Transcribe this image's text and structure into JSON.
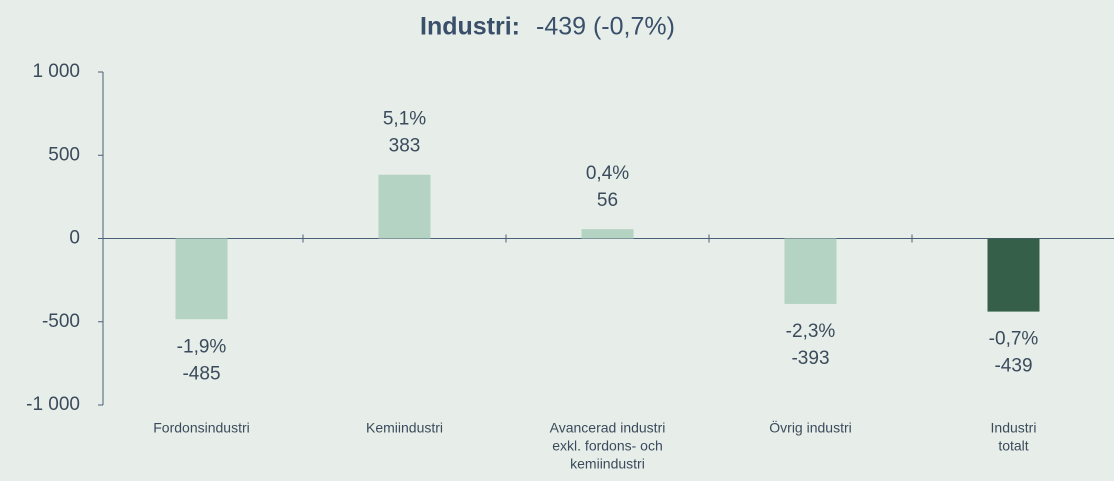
{
  "chart_data": {
    "type": "bar",
    "title": "Industri:",
    "subtitle": "-439 (-0,7%)",
    "categories": [
      [
        "Fordonsindustri"
      ],
      [
        "Kemiindustri"
      ],
      [
        "Avancerad industri",
        "exkl. fordons- och",
        "kemiindustri"
      ],
      [
        "Övrig industri"
      ],
      [
        "Industri",
        "totalt"
      ]
    ],
    "values": [
      -485,
      383,
      56,
      -393,
      -439
    ],
    "shares": [
      -1.9,
      5.1,
      0.4,
      -2.3,
      -0.7
    ],
    "share_labels": [
      "-1,9%",
      "5,1%",
      "0,4%",
      "-2,3%",
      "-0,7%"
    ],
    "colors": [
      "#b5d3c2",
      "#b5d3c2",
      "#b5d3c2",
      "#b5d3c2",
      "#355f49"
    ],
    "ylim": [
      -1000,
      1000
    ],
    "yticks": [
      {
        "value": -1000,
        "label": "-1 000"
      },
      -500,
      0,
      500,
      {
        "value": 1000,
        "label": "1 000"
      }
    ]
  }
}
